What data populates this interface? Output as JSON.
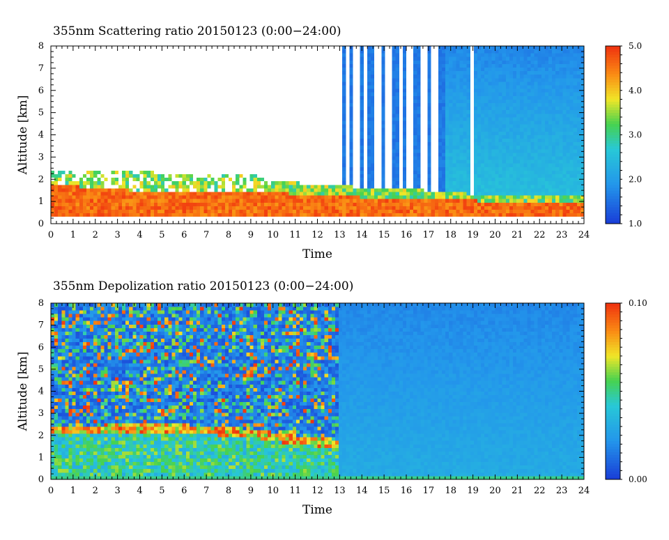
{
  "chart_data": [
    {
      "type": "heatmap",
      "title": "355nm Scattering ratio  20150123 (0:00−24:00)",
      "xlabel": "Time",
      "ylabel": "Altitude [km]",
      "xlim": [
        0,
        24
      ],
      "ylim": [
        0,
        8
      ],
      "x_ticks": [
        "0",
        "1",
        "2",
        "3",
        "4",
        "5",
        "6",
        "7",
        "8",
        "9",
        "10",
        "11",
        "12",
        "13",
        "14",
        "15",
        "16",
        "17",
        "18",
        "19",
        "20",
        "21",
        "22",
        "23",
        "24"
      ],
      "y_ticks": [
        "0",
        "1",
        "2",
        "3",
        "4",
        "5",
        "6",
        "7",
        "8"
      ],
      "colorbar": {
        "min": 1.0,
        "max": 5.0,
        "tick_labels": [
          "1.0",
          "2.0",
          "3.0",
          "4.0",
          "5.0"
        ],
        "tick_values": [
          1.0,
          2.0,
          3.0,
          4.0,
          5.0
        ]
      },
      "colors": {
        "low": "#1a3cd8",
        "mid_low": "#25b3e8",
        "mid": "#46d44a",
        "mid_high": "#f5e62a",
        "high": "#f43a10",
        "missing": "#ffffff"
      },
      "features": {
        "aerosol_layer_top_km": [
          [
            0,
            2.6
          ],
          [
            1,
            2.3
          ],
          [
            3,
            2.4
          ],
          [
            5,
            2.3
          ],
          [
            7,
            2.2
          ],
          [
            9,
            2.3
          ],
          [
            10,
            1.9
          ],
          [
            12,
            1.8
          ],
          [
            13,
            1.7
          ],
          [
            16,
            1.6
          ],
          [
            18,
            1.4
          ],
          [
            20,
            1.3
          ],
          [
            24,
            1.2
          ]
        ],
        "boundary_layer_top_km": [
          [
            0,
            1.8
          ],
          [
            2,
            1.6
          ],
          [
            4,
            1.5
          ],
          [
            6,
            1.5
          ],
          [
            8,
            1.4
          ],
          [
            10,
            1.4
          ],
          [
            12,
            1.3
          ],
          [
            14,
            1.2
          ],
          [
            16,
            1.2
          ],
          [
            18,
            1.1
          ],
          [
            20,
            1.0
          ],
          [
            24,
            0.9
          ]
        ],
        "clear_sky_columns_hours": [
          [
            13.3,
            13.5
          ],
          [
            13.6,
            13.9
          ],
          [
            14.05,
            14.25
          ],
          [
            14.6,
            14.85
          ],
          [
            15.0,
            15.3
          ],
          [
            15.7,
            15.85
          ],
          [
            16.0,
            16.35
          ],
          [
            16.6,
            16.95
          ],
          [
            17.2,
            17.5
          ],
          [
            18.95,
            19.05
          ]
        ],
        "missing_data_region": {
          "x_range": [
            0,
            13.2
          ],
          "y_range": [
            2.5,
            8
          ]
        }
      }
    },
    {
      "type": "heatmap",
      "title": "355nm Depolization ratio  20150123 (0:00−24:00)",
      "xlabel": "Time",
      "ylabel": "Altitude [km]",
      "xlim": [
        0,
        24
      ],
      "ylim": [
        0,
        8
      ],
      "x_ticks": [
        "0",
        "1",
        "2",
        "3",
        "4",
        "5",
        "6",
        "7",
        "8",
        "9",
        "10",
        "11",
        "12",
        "13",
        "14",
        "15",
        "16",
        "17",
        "18",
        "19",
        "20",
        "21",
        "22",
        "23",
        "24"
      ],
      "y_ticks": [
        "0",
        "1",
        "2",
        "3",
        "4",
        "5",
        "6",
        "7",
        "8"
      ],
      "colorbar": {
        "min": 0.0,
        "max": 0.1,
        "tick_labels": [
          "0.00",
          "0.10"
        ],
        "tick_values": [
          0.0,
          0.1
        ]
      },
      "colors": {
        "low": "#1a3cd8",
        "mid_low": "#25b3e8",
        "mid": "#46d44a",
        "mid_high": "#f5e62a",
        "high": "#f43a10"
      },
      "features": {
        "noisy_region": {
          "x_range": [
            0,
            13
          ],
          "y_range": [
            2.4,
            8
          ]
        },
        "high_depol_layer_km": [
          [
            0,
            2.4
          ],
          [
            3,
            2.5
          ],
          [
            6,
            2.5
          ],
          [
            9,
            2.3
          ],
          [
            11,
            2.0
          ],
          [
            13,
            1.8
          ]
        ],
        "background_value": 0.03
      }
    }
  ]
}
